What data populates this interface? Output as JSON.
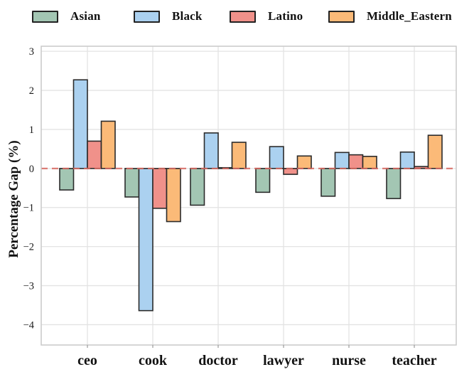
{
  "legend": {
    "items": [
      {
        "label": "Asian",
        "color": "#a3c6b3"
      },
      {
        "label": "Black",
        "color": "#abd1f0"
      },
      {
        "label": "Latino",
        "color": "#f0918a"
      },
      {
        "label": "Middle_Eastern",
        "color": "#fbba78"
      }
    ]
  },
  "chart_data": {
    "type": "bar",
    "title": "",
    "categories": [
      "ceo",
      "cook",
      "doctor",
      "lawyer",
      "nurse",
      "teacher"
    ],
    "series": [
      {
        "name": "Asian",
        "color": "#a3c6b3",
        "values": [
          -0.55,
          -0.73,
          -0.94,
          -0.61,
          -0.71,
          -0.77
        ]
      },
      {
        "name": "Black",
        "color": "#abd1f0",
        "values": [
          2.27,
          -3.64,
          0.91,
          0.56,
          0.41,
          0.42
        ]
      },
      {
        "name": "Latino",
        "color": "#f0918a",
        "values": [
          0.7,
          -1.02,
          0.02,
          -0.15,
          0.35,
          0.05
        ]
      },
      {
        "name": "Middle_Eastern",
        "color": "#fbba78",
        "values": [
          1.21,
          -1.36,
          0.67,
          0.32,
          0.31,
          0.85
        ]
      }
    ],
    "xlabel": "",
    "ylabel": "Percentage Gap (%)",
    "ylim": [
      -4.52,
      3.13
    ],
    "yticks": [
      3,
      2,
      1,
      0,
      -1,
      -2,
      -3,
      -4
    ],
    "grid": true,
    "legend_position": "top",
    "zero_line": {
      "value": 0,
      "style": "dashed",
      "color": "#d96a62"
    },
    "bar_edge_color": "#2b2b2b",
    "grid_color": "#e3e3e3",
    "axis_border_color": "#c9c9c9",
    "tick_color": "#999999"
  }
}
